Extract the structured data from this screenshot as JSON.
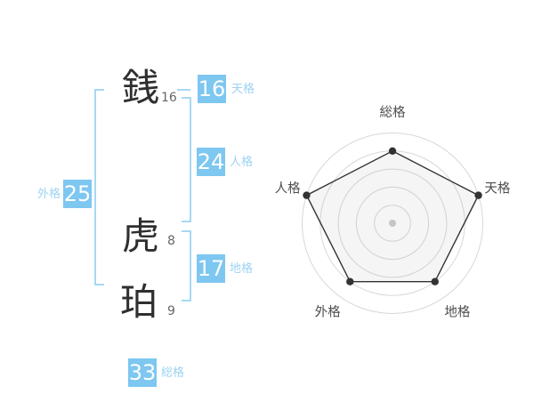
{
  "name_analysis": {
    "characters": [
      {
        "char": "銭",
        "strokes": "16"
      },
      {
        "char": "虎",
        "strokes": "8"
      },
      {
        "char": "珀",
        "strokes": "9"
      }
    ],
    "categories": {
      "tenkaku": {
        "value": "16",
        "label": "天格"
      },
      "jinkaku": {
        "value": "24",
        "label": "人格"
      },
      "gaikaku": {
        "value": "25",
        "label": "外格"
      },
      "chikaku": {
        "value": "17",
        "label": "地格"
      },
      "soukaku": {
        "value": "33",
        "label": "総格"
      }
    }
  },
  "chart_data": {
    "type": "radar",
    "categories": [
      "総格",
      "天格",
      "地格",
      "外格",
      "人格"
    ],
    "values": [
      80,
      100,
      80,
      80,
      100
    ],
    "max": 100,
    "rings": 5,
    "grid": "circular-rings",
    "legend": "none",
    "title": ""
  },
  "colors": {
    "accent": "#7dc7f1",
    "accent_light": "#9dd2f3",
    "bracket": "#a6d9f3",
    "ink": "#2f2f2f",
    "muted": "#666666",
    "grid": "#d8d8d8",
    "series": "#333333",
    "series_fill": "rgba(140,140,140,0.09)",
    "center_dot": "#c5c5c5",
    "axis_label": "#4d4d4d"
  }
}
